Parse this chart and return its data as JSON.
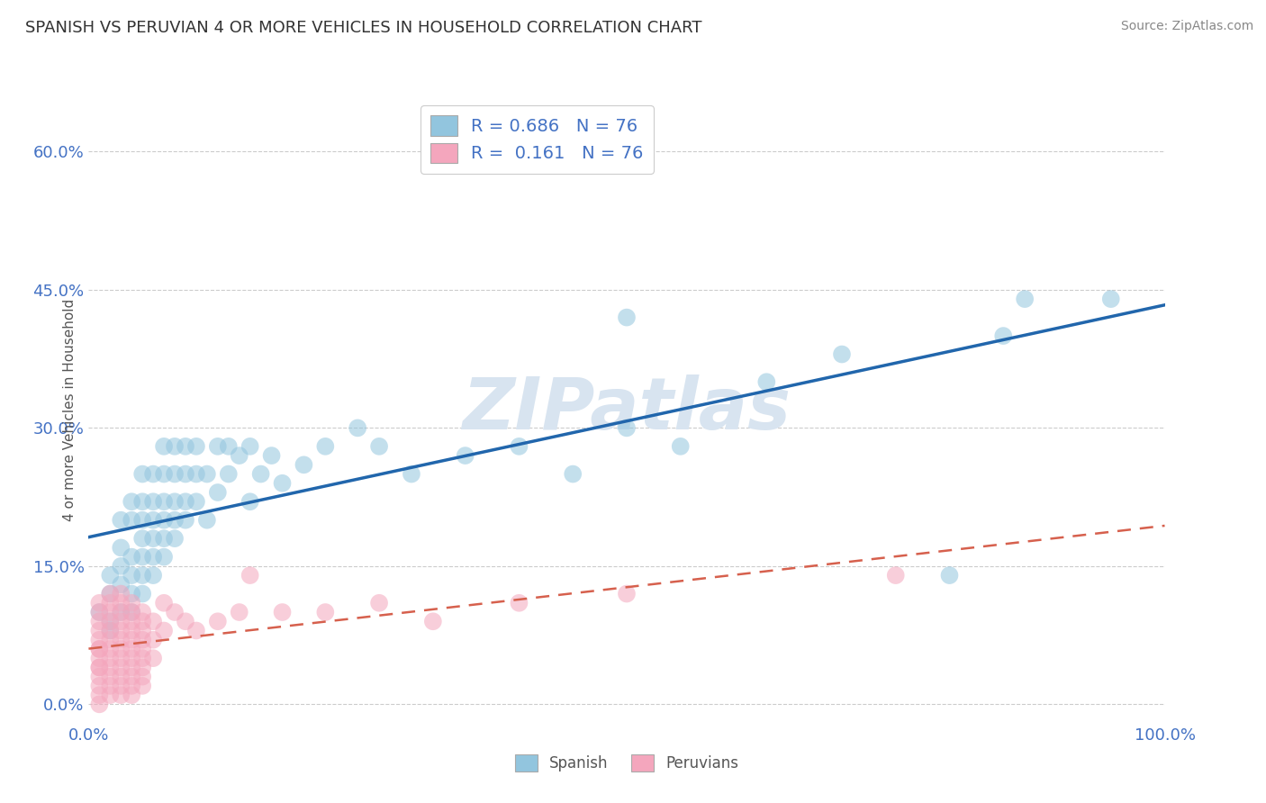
{
  "title": "SPANISH VS PERUVIAN 4 OR MORE VEHICLES IN HOUSEHOLD CORRELATION CHART",
  "source": "Source: ZipAtlas.com",
  "ylabel": "4 or more Vehicles in Household",
  "xlim": [
    0.0,
    1.0
  ],
  "ylim": [
    -0.02,
    0.66
  ],
  "xtick_vals": [
    0.0,
    1.0
  ],
  "xtick_labels": [
    "0.0%",
    "100.0%"
  ],
  "ytick_vals": [
    0.0,
    0.15,
    0.3,
    0.45,
    0.6
  ],
  "ytick_labels": [
    "0.0%",
    "15.0%",
    "30.0%",
    "45.0%",
    "60.0%"
  ],
  "R_spanish": 0.686,
  "N_spanish": 76,
  "R_peruvian": 0.161,
  "N_peruvian": 76,
  "spanish_color": "#92c5de",
  "peruvian_color": "#f4a6bd",
  "regression_spanish_color": "#2166ac",
  "regression_peruvian_color": "#d6604d",
  "background_color": "#ffffff",
  "legend_labels": [
    "Spanish",
    "Peruvians"
  ],
  "watermark_color": "#d8e4f0",
  "spanish_scatter": [
    [
      0.01,
      0.1
    ],
    [
      0.02,
      0.09
    ],
    [
      0.02,
      0.12
    ],
    [
      0.02,
      0.14
    ],
    [
      0.02,
      0.08
    ],
    [
      0.03,
      0.1
    ],
    [
      0.03,
      0.13
    ],
    [
      0.03,
      0.15
    ],
    [
      0.03,
      0.17
    ],
    [
      0.03,
      0.2
    ],
    [
      0.04,
      0.1
    ],
    [
      0.04,
      0.12
    ],
    [
      0.04,
      0.14
    ],
    [
      0.04,
      0.16
    ],
    [
      0.04,
      0.2
    ],
    [
      0.04,
      0.22
    ],
    [
      0.05,
      0.12
    ],
    [
      0.05,
      0.14
    ],
    [
      0.05,
      0.16
    ],
    [
      0.05,
      0.18
    ],
    [
      0.05,
      0.2
    ],
    [
      0.05,
      0.22
    ],
    [
      0.05,
      0.25
    ],
    [
      0.06,
      0.14
    ],
    [
      0.06,
      0.16
    ],
    [
      0.06,
      0.18
    ],
    [
      0.06,
      0.2
    ],
    [
      0.06,
      0.22
    ],
    [
      0.06,
      0.25
    ],
    [
      0.07,
      0.16
    ],
    [
      0.07,
      0.18
    ],
    [
      0.07,
      0.2
    ],
    [
      0.07,
      0.22
    ],
    [
      0.07,
      0.25
    ],
    [
      0.07,
      0.28
    ],
    [
      0.08,
      0.18
    ],
    [
      0.08,
      0.2
    ],
    [
      0.08,
      0.22
    ],
    [
      0.08,
      0.25
    ],
    [
      0.08,
      0.28
    ],
    [
      0.09,
      0.2
    ],
    [
      0.09,
      0.22
    ],
    [
      0.09,
      0.25
    ],
    [
      0.09,
      0.28
    ],
    [
      0.1,
      0.22
    ],
    [
      0.1,
      0.25
    ],
    [
      0.1,
      0.28
    ],
    [
      0.11,
      0.2
    ],
    [
      0.11,
      0.25
    ],
    [
      0.12,
      0.23
    ],
    [
      0.12,
      0.28
    ],
    [
      0.13,
      0.25
    ],
    [
      0.13,
      0.28
    ],
    [
      0.14,
      0.27
    ],
    [
      0.15,
      0.28
    ],
    [
      0.15,
      0.22
    ],
    [
      0.16,
      0.25
    ],
    [
      0.17,
      0.27
    ],
    [
      0.18,
      0.24
    ],
    [
      0.2,
      0.26
    ],
    [
      0.22,
      0.28
    ],
    [
      0.25,
      0.3
    ],
    [
      0.27,
      0.28
    ],
    [
      0.3,
      0.25
    ],
    [
      0.35,
      0.27
    ],
    [
      0.4,
      0.28
    ],
    [
      0.45,
      0.25
    ],
    [
      0.5,
      0.3
    ],
    [
      0.55,
      0.28
    ],
    [
      0.63,
      0.35
    ],
    [
      0.7,
      0.38
    ],
    [
      0.8,
      0.14
    ],
    [
      0.85,
      0.4
    ],
    [
      0.87,
      0.44
    ],
    [
      0.95,
      0.44
    ],
    [
      0.5,
      0.42
    ]
  ],
  "peruvian_scatter": [
    [
      0.01,
      0.03
    ],
    [
      0.01,
      0.05
    ],
    [
      0.01,
      0.07
    ],
    [
      0.01,
      0.04
    ],
    [
      0.01,
      0.06
    ],
    [
      0.01,
      0.08
    ],
    [
      0.01,
      0.02
    ],
    [
      0.01,
      0.09
    ],
    [
      0.01,
      0.01
    ],
    [
      0.01,
      0.1
    ],
    [
      0.01,
      0.11
    ],
    [
      0.01,
      0.06
    ],
    [
      0.01,
      0.04
    ],
    [
      0.02,
      0.03
    ],
    [
      0.02,
      0.05
    ],
    [
      0.02,
      0.07
    ],
    [
      0.02,
      0.04
    ],
    [
      0.02,
      0.06
    ],
    [
      0.02,
      0.08
    ],
    [
      0.02,
      0.02
    ],
    [
      0.02,
      0.09
    ],
    [
      0.02,
      0.01
    ],
    [
      0.02,
      0.1
    ],
    [
      0.02,
      0.11
    ],
    [
      0.02,
      0.12
    ],
    [
      0.03,
      0.03
    ],
    [
      0.03,
      0.05
    ],
    [
      0.03,
      0.07
    ],
    [
      0.03,
      0.04
    ],
    [
      0.03,
      0.06
    ],
    [
      0.03,
      0.08
    ],
    [
      0.03,
      0.02
    ],
    [
      0.03,
      0.09
    ],
    [
      0.03,
      0.01
    ],
    [
      0.03,
      0.1
    ],
    [
      0.03,
      0.11
    ],
    [
      0.03,
      0.12
    ],
    [
      0.04,
      0.03
    ],
    [
      0.04,
      0.05
    ],
    [
      0.04,
      0.07
    ],
    [
      0.04,
      0.04
    ],
    [
      0.04,
      0.06
    ],
    [
      0.04,
      0.08
    ],
    [
      0.04,
      0.02
    ],
    [
      0.04,
      0.09
    ],
    [
      0.04,
      0.01
    ],
    [
      0.04,
      0.1
    ],
    [
      0.04,
      0.11
    ],
    [
      0.05,
      0.03
    ],
    [
      0.05,
      0.05
    ],
    [
      0.05,
      0.07
    ],
    [
      0.05,
      0.04
    ],
    [
      0.05,
      0.06
    ],
    [
      0.05,
      0.08
    ],
    [
      0.05,
      0.02
    ],
    [
      0.05,
      0.09
    ],
    [
      0.05,
      0.1
    ],
    [
      0.06,
      0.05
    ],
    [
      0.06,
      0.07
    ],
    [
      0.06,
      0.09
    ],
    [
      0.07,
      0.08
    ],
    [
      0.07,
      0.11
    ],
    [
      0.08,
      0.1
    ],
    [
      0.09,
      0.09
    ],
    [
      0.1,
      0.08
    ],
    [
      0.12,
      0.09
    ],
    [
      0.14,
      0.1
    ],
    [
      0.15,
      0.14
    ],
    [
      0.18,
      0.1
    ],
    [
      0.22,
      0.1
    ],
    [
      0.27,
      0.11
    ],
    [
      0.32,
      0.09
    ],
    [
      0.4,
      0.11
    ],
    [
      0.5,
      0.12
    ],
    [
      0.75,
      0.14
    ],
    [
      0.01,
      0.0
    ]
  ]
}
